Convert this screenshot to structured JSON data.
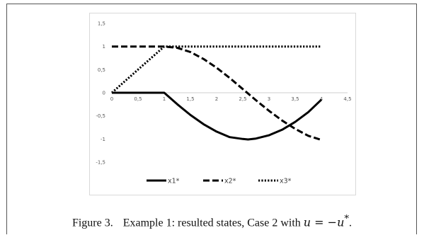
{
  "figure": {
    "caption_label": "Figure 3.",
    "caption_text": "Example 1: resulted states, Case 2 with ",
    "caption_math": "u = −u",
    "caption_sup": "*",
    "caption_end": "."
  },
  "chart_data": {
    "type": "line",
    "title": "",
    "xlabel": "",
    "ylabel": "",
    "xlim": [
      0,
      4.5
    ],
    "ylim": [
      -1.5,
      1.5
    ],
    "x_ticks": [
      "0",
      "0,5",
      "1",
      "1,5",
      "2",
      "2,5",
      "3",
      "3,5",
      "4",
      "4,5"
    ],
    "y_ticks": [
      "1,5",
      "1",
      "0,5",
      "0",
      "-0,5",
      "-1",
      "-1,5"
    ],
    "grid": false,
    "legend_position": "bottom",
    "series": [
      {
        "name": "x1*",
        "style": "solid",
        "color": "#000000",
        "x": [
          0,
          0.5,
          1,
          1.25,
          1.5,
          1.75,
          2,
          2.25,
          2.5,
          2.6,
          2.75,
          3,
          3.25,
          3.5,
          3.75,
          4
        ],
        "y": [
          0,
          0,
          0,
          -0.25,
          -0.48,
          -0.68,
          -0.84,
          -0.96,
          -1.0,
          -1.01,
          -0.99,
          -0.92,
          -0.8,
          -0.63,
          -0.42,
          -0.15
        ]
      },
      {
        "name": "x2*",
        "style": "dashed",
        "color": "#000000",
        "x": [
          0,
          0.5,
          1,
          1.25,
          1.5,
          1.75,
          2,
          2.25,
          2.5,
          2.75,
          3,
          3.25,
          3.5,
          3.75,
          4
        ],
        "y": [
          1,
          1,
          1,
          0.97,
          0.88,
          0.73,
          0.54,
          0.32,
          0.08,
          -0.16,
          -0.39,
          -0.6,
          -0.78,
          -0.93,
          -1.02
        ]
      },
      {
        "name": "x3*",
        "style": "dotted",
        "color": "#000000",
        "x": [
          0,
          0.5,
          1,
          1.5,
          2,
          2.5,
          3,
          3.5,
          4
        ],
        "y": [
          0,
          0.5,
          1,
          1,
          1,
          1,
          1,
          1,
          1
        ]
      }
    ]
  }
}
